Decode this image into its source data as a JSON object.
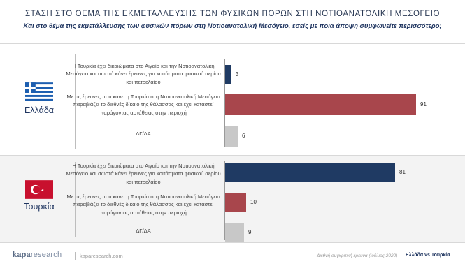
{
  "title": "ΣΤΑΣΗ ΣΤΟ ΘΕΜΑ ΤΗΣ ΕΚΜΕΤΑΛΛΕΥΣΗΣ ΤΩΝ ΦΥΣΙΚΩΝ ΠΟΡΩΝ ΣΤΗ ΝΟΤΙΟΑΝΑΤΟΛΙΚΗ ΜΕΣΟΓΕΙΟ",
  "subtitle": "Και στο θέμα της εκμετάλλευσης των φυσικών πόρων στη Νοτιοανατολική Μεσόγειο, εσείς με ποια άποψη συμφωνείτε περισσότερο;",
  "colors": {
    "turkey_rights": "#1f3a63",
    "intl_law": "#a8464c",
    "dkna": "#c8c8c8",
    "greek_flag_blue": "#1d5fb0",
    "turkish_flag_red": "#c8102e"
  },
  "chart_data": {
    "type": "bar",
    "orientation": "horizontal",
    "xlim": [
      0,
      100
    ],
    "categories": [
      "Η Τουρκία έχει δικαιώματα στο Αιγαίο και την Νοτιοανατολική Μεσόγειο και σωστά κάνει έρευνες για κοιτάσματα φυσικού αερίου και πετρελαίου",
      "Με τις έρευνες που κάνει η Τουρκία στη Νοτιοανατολική Μεσόγειο παραβιάζει το διεθνές δίκαιο της θάλασσας και έχει καταστεί παράγοντας αστάθειας στην περιοχή",
      "ΔΓ/ΔΑ"
    ],
    "groups": [
      {
        "name": "Ελλάδα",
        "values": [
          3,
          91,
          6
        ]
      },
      {
        "name": "Τουρκία",
        "values": [
          81,
          10,
          9
        ]
      }
    ]
  },
  "footer": {
    "logo_bold": "kapa",
    "logo_light": "research",
    "url": "kaparesearch.com",
    "note": "Διεθνή συγκριτική έρευνα (Ιούλιος 2020)",
    "tag": "Ελλάδα vs Τουρκία"
  }
}
